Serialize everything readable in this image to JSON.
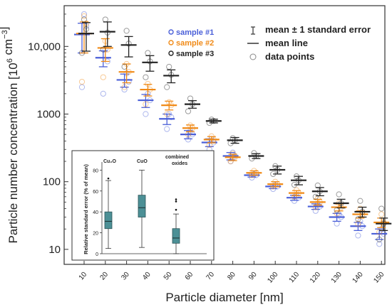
{
  "chart_data": [
    {
      "type": "scatter",
      "title": "",
      "xlabel": "Particle diameter [nm]",
      "ylabel": "Particle number concentration [10",
      "ylabel_exp": "6",
      "ylabel_unit": " cm",
      "ylabel_unit_exp": "−3",
      "ylabel_close": "]",
      "y_scale": "log",
      "ylim": [
        6,
        40000
      ],
      "categories": [
        "10",
        "20",
        "30",
        "40",
        "50",
        "60",
        "70",
        "80",
        "90",
        "100",
        "110",
        "120",
        "130",
        "140",
        "150"
      ],
      "y_tick_values": [
        10,
        100,
        1000,
        10000
      ],
      "y_tick_labels": [
        "10",
        "100",
        "1000",
        "10,000"
      ],
      "legend_left": [
        {
          "marker": "o",
          "label": "sample #1",
          "color": "#4a5fd8"
        },
        {
          "marker": "o",
          "label": "sample #2",
          "color": "#f08a17"
        },
        {
          "marker": "o",
          "label": "sample #3",
          "color": "#222222"
        }
      ],
      "legend_right": [
        {
          "marker": "I",
          "label": "mean ± 1 standard error"
        },
        {
          "marker": "—",
          "label": "mean line"
        },
        {
          "marker": "○",
          "label": "data points"
        }
      ],
      "series": [
        {
          "name": "sample #1",
          "color": "#4a5fd8",
          "mean": [
            15000,
            6800,
            3200,
            1600,
            850,
            500,
            380,
            240,
            125,
            85,
            58,
            43,
            30,
            22,
            17
          ],
          "se": [
            7000,
            1800,
            700,
            350,
            150,
            70,
            50,
            30,
            8,
            6,
            5,
            4,
            4,
            3,
            3
          ],
          "points": [
            [
              2500,
              30000,
              20000
            ],
            [
              2000,
              9000,
              6000
            ],
            [
              2300,
              4000,
              3000
            ],
            [
              1000,
              2000,
              1600
            ],
            [
              600,
              1000,
              900
            ],
            [
              420,
              560,
              500
            ],
            [
              300,
              430,
              380
            ],
            [
              200,
              270,
              240
            ],
            [
              115,
              130,
              125
            ],
            [
              78,
              90,
              85
            ],
            [
              52,
              62,
              58
            ],
            [
              37,
              46,
              43
            ],
            [
              24,
              33,
              30
            ],
            [
              16,
              26,
              22
            ],
            [
              12,
              20,
              17
            ]
          ]
        },
        {
          "name": "sample #2",
          "color": "#f08a17",
          "mean": [
            15500,
            9500,
            4200,
            2300,
            1350,
            620,
            420,
            230,
            135,
            92,
            68,
            50,
            42,
            33,
            25
          ],
          "se": [
            7500,
            3500,
            1300,
            450,
            200,
            70,
            45,
            25,
            10,
            8,
            6,
            5,
            5,
            4,
            4
          ],
          "points": [
            [
              3000,
              28000,
              22000
            ],
            [
              3500,
              12000,
              9000
            ],
            [
              2500,
              5500,
              4200
            ],
            [
              1400,
              2800,
              2300
            ],
            [
              1000,
              1500,
              1350
            ],
            [
              500,
              680,
              620
            ],
            [
              350,
              470,
              420
            ],
            [
              200,
              260,
              230
            ],
            [
              125,
              145,
              135
            ],
            [
              85,
              100,
              92
            ],
            [
              60,
              75,
              68
            ],
            [
              42,
              56,
              50
            ],
            [
              34,
              48,
              42
            ],
            [
              24,
              40,
              33
            ],
            [
              18,
              33,
              25
            ]
          ]
        },
        {
          "name": "sample #3",
          "color": "#222222",
          "mean": [
            15500,
            16500,
            10500,
            5800,
            3700,
            1400,
            790,
            410,
            240,
            150,
            105,
            72,
            48,
            36,
            24
          ],
          "se": [
            7000,
            6500,
            3500,
            1500,
            800,
            180,
            50,
            40,
            20,
            20,
            15,
            10,
            7,
            6,
            5
          ],
          "points": [
            [
              8000,
              25000,
              18000
            ],
            [
              9000,
              25000,
              16000
            ],
            [
              5000,
              17000,
              11000
            ],
            [
              3500,
              8000,
              6000
            ],
            [
              2500,
              5000,
              3800
            ],
            [
              1100,
              1700,
              1400
            ],
            [
              740,
              830,
              790
            ],
            [
              370,
              440,
              410
            ],
            [
              220,
              265,
              240
            ],
            [
              130,
              170,
              150
            ],
            [
              90,
              120,
              105
            ],
            [
              60,
              88,
              72
            ],
            [
              38,
              65,
              48
            ],
            [
              28,
              52,
              36
            ],
            [
              14,
              40,
              24
            ]
          ]
        }
      ]
    },
    {
      "type": "box",
      "title": "",
      "xlabel": "",
      "ylabel": "Relative standard error (% of mean)",
      "ylim": [
        0,
        85
      ],
      "y_ticks": [
        0,
        20,
        40,
        60,
        80
      ],
      "categories": [
        "Cu₂O",
        "CuO",
        "combined oxides"
      ],
      "boxes": [
        {
          "label": "Cu₂O",
          "whisker_low": 5,
          "q1": 24,
          "median": 31,
          "q3": 40,
          "whisker_high": 70,
          "outliers": [
            72
          ]
        },
        {
          "label": "CuO",
          "whisker_low": 6,
          "q1": 35,
          "median": 44,
          "q3": 56,
          "whisker_high": 80,
          "outliers": []
        },
        {
          "label": "combined oxides",
          "whisker_low": 0,
          "q1": 10,
          "median": 15,
          "q3": 24,
          "whisker_high": 38,
          "outliers": [
            42,
            50,
            52
          ]
        }
      ],
      "box_color": "#4c9096"
    }
  ]
}
